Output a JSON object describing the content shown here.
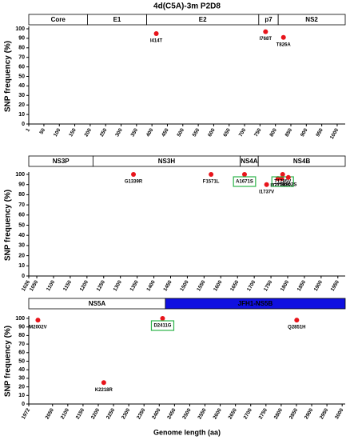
{
  "chart_data": [
    {
      "type": "scatter",
      "title": "4d(C5A)-3m P2D8",
      "color": "#e8141b",
      "ylabel": "SNP frequency (%)",
      "regions": [
        {
          "name": "Core",
          "start": 1,
          "end": 191,
          "color": "#ffffff"
        },
        {
          "name": "E1",
          "start": 191,
          "end": 383,
          "color": "#ffffff"
        },
        {
          "name": "E2",
          "start": 383,
          "end": 746,
          "color": "#ffffff"
        },
        {
          "name": "p7",
          "start": 746,
          "end": 809,
          "color": "#ffffff"
        },
        {
          "name": "NS2",
          "start": 809,
          "end": 1026,
          "color": "#ffffff"
        }
      ],
      "x": [
        414,
        768,
        826
      ],
      "values": [
        95,
        97,
        91
      ],
      "labels": [
        "I414T",
        "I768T",
        "T826A"
      ],
      "highlighted": [
        false,
        false,
        false
      ],
      "xlim": [
        1,
        1026
      ],
      "xticks": [
        1,
        50,
        100,
        150,
        200,
        250,
        300,
        350,
        400,
        450,
        500,
        550,
        600,
        650,
        700,
        750,
        800,
        850,
        900,
        950,
        1000
      ],
      "ylim": [
        0,
        100
      ],
      "yticks": [
        0,
        10,
        20,
        30,
        40,
        50,
        60,
        70,
        80,
        90,
        100
      ]
    },
    {
      "type": "scatter",
      "color": "#e8141b",
      "ylabel": "SNP frequency (%)",
      "regions": [
        {
          "name": "NS3P",
          "start": 1026,
          "end": 1218,
          "color": "#ffffff"
        },
        {
          "name": "NS3H",
          "start": 1218,
          "end": 1658,
          "color": "#ffffff"
        },
        {
          "name": "NS4A",
          "start": 1658,
          "end": 1712,
          "color": "#ffffff"
        },
        {
          "name": "NS4B",
          "start": 1712,
          "end": 1972,
          "color": "#ffffff"
        }
      ],
      "x": [
        1339,
        1571,
        1671,
        1737,
        1771,
        1782,
        1785,
        1802
      ],
      "values": [
        100,
        100,
        100,
        90,
        96,
        96,
        100,
        97
      ],
      "labels": [
        "G1339R",
        "F1571L",
        "A1671S",
        "I1737V",
        "I1771V",
        "G1782S",
        "T1785V",
        "T1802S"
      ],
      "highlighted": [
        false,
        false,
        true,
        false,
        false,
        false,
        true,
        false
      ],
      "xlim": [
        1026,
        1972
      ],
      "xticks": [
        1026,
        1050,
        1100,
        1150,
        1200,
        1250,
        1300,
        1350,
        1400,
        1450,
        1500,
        1550,
        1600,
        1650,
        1700,
        1750,
        1800,
        1850,
        1900,
        1950
      ],
      "ylim": [
        0,
        100
      ],
      "yticks": [
        0,
        10,
        20,
        30,
        40,
        50,
        60,
        70,
        80,
        90,
        100
      ]
    },
    {
      "type": "scatter",
      "color": "#e8141b",
      "ylabel": "SNP frequency (%)",
      "xlabel": "Genome length (aa)",
      "regions": [
        {
          "name": "NS5A",
          "start": 1972,
          "end": 2420,
          "color": "#ffffff"
        },
        {
          "name": "JFH1-NS5B",
          "start": 2420,
          "end": 3010,
          "color": "#1010e0"
        }
      ],
      "x": [
        2002,
        2218,
        2411,
        2851
      ],
      "values": [
        98,
        25,
        100,
        98
      ],
      "labels": [
        "M2002V",
        "K2218R",
        "D2411G",
        "Q2851H"
      ],
      "highlighted": [
        false,
        false,
        true,
        false
      ],
      "xlim": [
        1972,
        3010
      ],
      "xticks": [
        1972,
        2050,
        2100,
        2150,
        2200,
        2250,
        2300,
        2350,
        2400,
        2450,
        2500,
        2550,
        2600,
        2650,
        2700,
        2750,
        2800,
        2850,
        2900,
        2950,
        3000
      ],
      "ylim": [
        0,
        100
      ],
      "yticks": [
        0,
        10,
        20,
        30,
        40,
        50,
        60,
        70,
        80,
        90,
        100
      ]
    }
  ]
}
